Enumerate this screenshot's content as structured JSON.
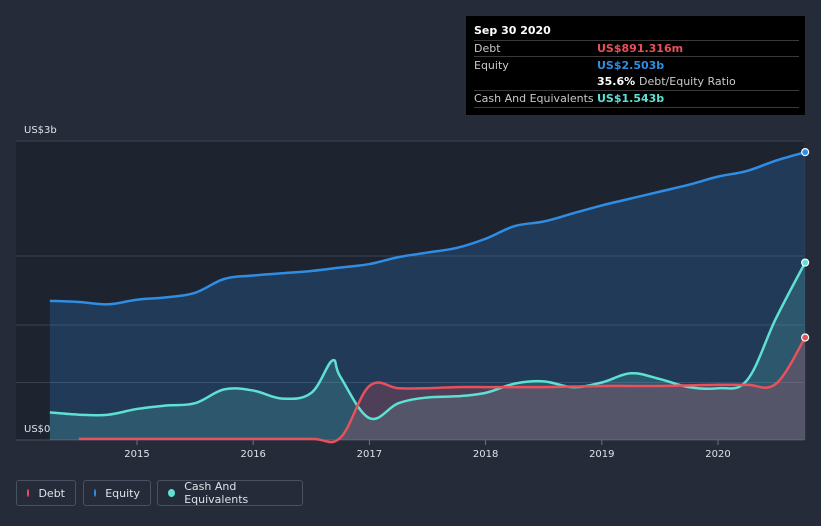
{
  "tooltip": {
    "date": "Sep 30 2020",
    "debt_label": "Debt",
    "debt_value": "US$891.316m",
    "equity_label": "Equity",
    "equity_value": "US$2.503b",
    "ratio_value": "35.6%",
    "ratio_label": "Debt/Equity Ratio",
    "cash_label": "Cash And Equivalents",
    "cash_value": "US$1.543b"
  },
  "legend": {
    "debt": "Debt",
    "equity": "Equity",
    "cash": "Cash And Equivalents"
  },
  "colors": {
    "debt": "#e8505b",
    "equity": "#2f8de4",
    "cash": "#5ee0d3",
    "background": "#252b38"
  },
  "chart_data": {
    "type": "area",
    "title": "",
    "xlabel": "",
    "ylabel": "",
    "x_ticks": [
      2015,
      2016,
      2017,
      2018,
      2019,
      2020
    ],
    "x_tick_labels": [
      "2015",
      "2016",
      "2017",
      "2018",
      "2019",
      "2020"
    ],
    "xlim": [
      2014.25,
      2020.75
    ],
    "ylim": [
      0,
      2.6
    ],
    "y_tick_labels": [
      {
        "value": 2.6,
        "label": "US$3b"
      },
      {
        "value": 0,
        "label": "US$0"
      }
    ],
    "grid_values": [
      0.5,
      1.0,
      1.6,
      2.6
    ],
    "series": [
      {
        "name": "Equity",
        "key": "equity",
        "points": [
          [
            2014.25,
            1.21
          ],
          [
            2014.5,
            1.2
          ],
          [
            2014.75,
            1.18
          ],
          [
            2015.0,
            1.22
          ],
          [
            2015.25,
            1.24
          ],
          [
            2015.5,
            1.28
          ],
          [
            2015.75,
            1.4
          ],
          [
            2016.0,
            1.43
          ],
          [
            2016.25,
            1.45
          ],
          [
            2016.5,
            1.47
          ],
          [
            2016.75,
            1.5
          ],
          [
            2017.0,
            1.53
          ],
          [
            2017.25,
            1.59
          ],
          [
            2017.5,
            1.63
          ],
          [
            2017.75,
            1.67
          ],
          [
            2018.0,
            1.75
          ],
          [
            2018.25,
            1.86
          ],
          [
            2018.5,
            1.9
          ],
          [
            2018.75,
            1.97
          ],
          [
            2019.0,
            2.04
          ],
          [
            2019.25,
            2.1
          ],
          [
            2019.5,
            2.16
          ],
          [
            2019.75,
            2.22
          ],
          [
            2020.0,
            2.29
          ],
          [
            2020.25,
            2.34
          ],
          [
            2020.5,
            2.43
          ],
          [
            2020.75,
            2.503
          ]
        ]
      },
      {
        "name": "Cash And Equivalents",
        "key": "cash",
        "points": [
          [
            2014.25,
            0.24
          ],
          [
            2014.5,
            0.22
          ],
          [
            2014.75,
            0.22
          ],
          [
            2015.0,
            0.27
          ],
          [
            2015.25,
            0.3
          ],
          [
            2015.5,
            0.32
          ],
          [
            2015.75,
            0.44
          ],
          [
            2016.0,
            0.43
          ],
          [
            2016.25,
            0.36
          ],
          [
            2016.5,
            0.41
          ],
          [
            2016.68,
            0.69
          ],
          [
            2016.75,
            0.55
          ],
          [
            2017.0,
            0.19
          ],
          [
            2017.25,
            0.32
          ],
          [
            2017.5,
            0.37
          ],
          [
            2017.75,
            0.38
          ],
          [
            2018.0,
            0.41
          ],
          [
            2018.25,
            0.49
          ],
          [
            2018.5,
            0.51
          ],
          [
            2018.75,
            0.46
          ],
          [
            2019.0,
            0.5
          ],
          [
            2019.25,
            0.58
          ],
          [
            2019.5,
            0.53
          ],
          [
            2019.75,
            0.46
          ],
          [
            2020.0,
            0.45
          ],
          [
            2020.25,
            0.52
          ],
          [
            2020.5,
            1.06
          ],
          [
            2020.75,
            1.543
          ]
        ]
      },
      {
        "name": "Debt",
        "key": "debt",
        "points": [
          [
            2014.5,
            0.01
          ],
          [
            2014.75,
            0.01
          ],
          [
            2015.0,
            0.01
          ],
          [
            2015.5,
            0.01
          ],
          [
            2016.0,
            0.01
          ],
          [
            2016.5,
            0.01
          ],
          [
            2016.75,
            0.02
          ],
          [
            2017.0,
            0.47
          ],
          [
            2017.25,
            0.45
          ],
          [
            2017.5,
            0.45
          ],
          [
            2017.75,
            0.46
          ],
          [
            2018.0,
            0.46
          ],
          [
            2018.5,
            0.46
          ],
          [
            2019.0,
            0.47
          ],
          [
            2019.5,
            0.47
          ],
          [
            2020.0,
            0.48
          ],
          [
            2020.25,
            0.48
          ],
          [
            2020.5,
            0.49
          ],
          [
            2020.75,
            0.891
          ]
        ]
      }
    ]
  }
}
